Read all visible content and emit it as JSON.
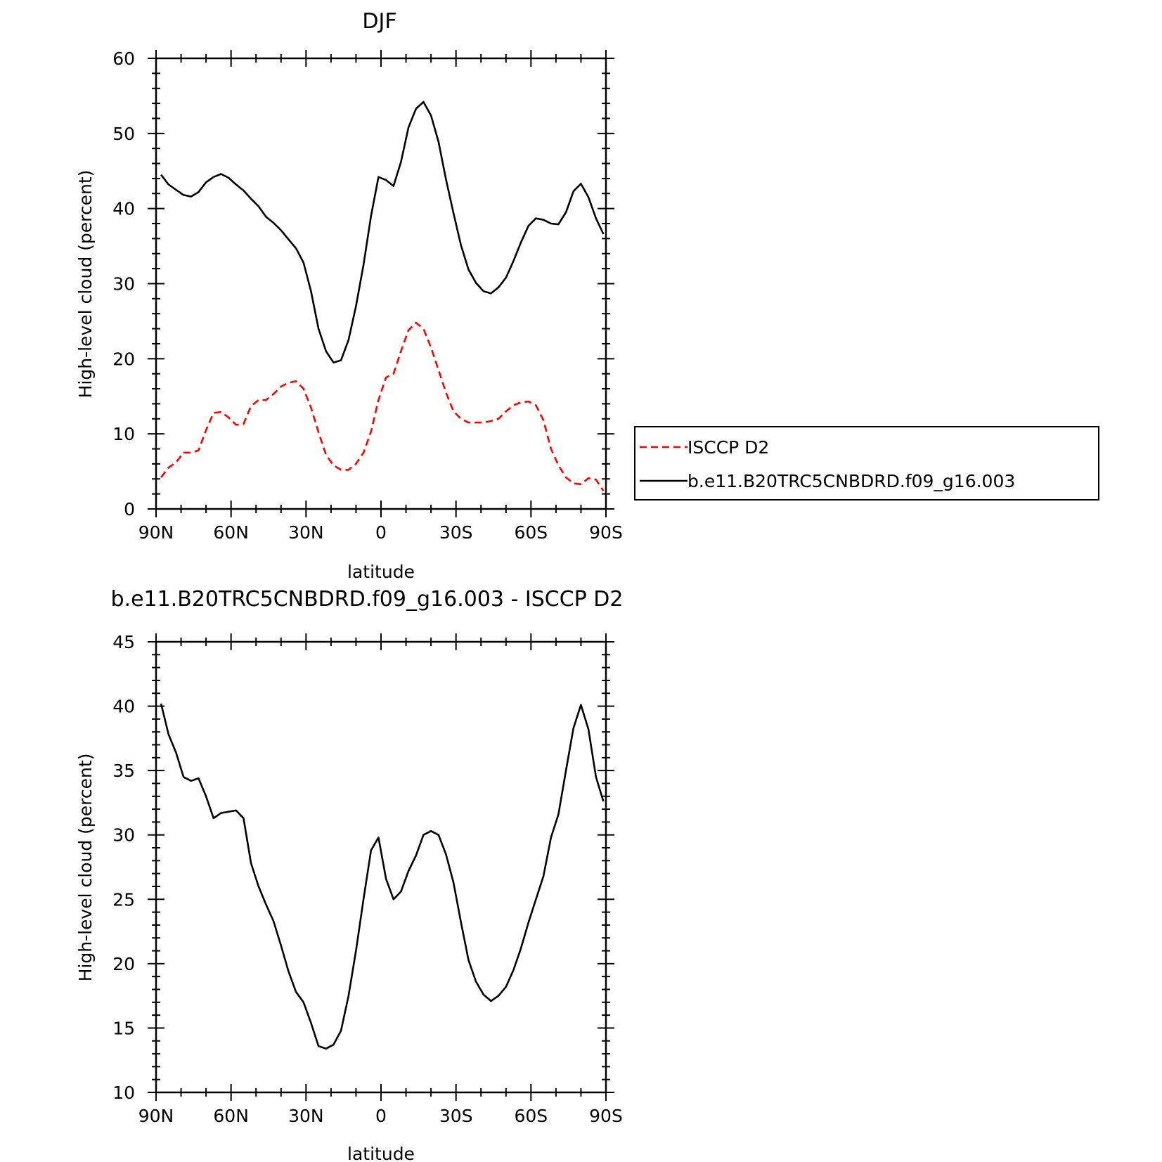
{
  "chart_data": [
    {
      "type": "line",
      "title": "DJF",
      "xlabel": "latitude",
      "ylabel": "High-level cloud (percent)",
      "xlim": [
        -90,
        90
      ],
      "ylim": [
        0,
        60
      ],
      "x_ticks": [
        -90,
        -60,
        -30,
        0,
        30,
        60,
        90
      ],
      "x_tick_labels": [
        "90N",
        "60N",
        "30N",
        "0",
        "30S",
        "60S",
        "90S"
      ],
      "y_ticks": [
        0,
        10,
        20,
        30,
        40,
        50,
        60
      ],
      "y_tick_labels": [
        "0",
        "10",
        "20",
        "30",
        "40",
        "50",
        "60"
      ],
      "grid": false,
      "legend": {
        "placement": "right",
        "entries": [
          "ISCCP D2",
          "b.e11.B20TRC5CNBDRD.f09_g16.003"
        ]
      },
      "x": [
        -88,
        -85,
        -82,
        -79,
        -76,
        -73,
        -70,
        -67,
        -64,
        -61,
        -58,
        -55,
        -52,
        -49,
        -46,
        -43,
        -40,
        -37,
        -34,
        -31,
        -28,
        -25,
        -22,
        -19,
        -16,
        -13,
        -10,
        -7,
        -4,
        -1,
        2,
        5,
        8,
        11,
        14,
        17,
        20,
        23,
        26,
        29,
        32,
        35,
        38,
        41,
        44,
        47,
        50,
        53,
        56,
        59,
        62,
        65,
        68,
        71,
        74,
        77,
        80,
        83,
        86,
        89
      ],
      "series": [
        {
          "name": "ISCCP D2",
          "color": "#ff0000",
          "dash": "dashed",
          "values": [
            4.2,
            5.5,
            6.2,
            7.5,
            7.5,
            7.8,
            10.5,
            12.8,
            12.9,
            12.2,
            11.2,
            11.3,
            13.7,
            14.5,
            14.5,
            15.3,
            16.3,
            16.8,
            17.0,
            16.0,
            13.5,
            10.2,
            7.2,
            5.8,
            5.2,
            5.2,
            6.0,
            7.5,
            10.3,
            14.5,
            17.5,
            18.0,
            21.0,
            23.8,
            24.8,
            24.0,
            21.5,
            18.5,
            15.5,
            13.0,
            12.0,
            11.5,
            11.5,
            11.5,
            11.7,
            12.0,
            13.0,
            13.8,
            14.2,
            14.3,
            13.8,
            11.8,
            8.0,
            5.8,
            4.2,
            3.4,
            3.3,
            4.1,
            3.9,
            2.4
          ]
        },
        {
          "name": "b.e11.B20TRC5CNBDRD.f09_g16.003",
          "color": "#000000",
          "dash": "solid",
          "values": [
            44.5,
            43.2,
            42.5,
            41.8,
            41.6,
            42.2,
            43.5,
            44.2,
            44.6,
            44.1,
            43.2,
            42.4,
            41.3,
            40.3,
            38.9,
            38.1,
            37.1,
            35.9,
            34.7,
            32.8,
            29.0,
            24.0,
            21.0,
            19.5,
            19.8,
            22.5,
            27.0,
            32.5,
            39.0,
            44.2,
            43.8,
            43.0,
            46.2,
            50.8,
            53.3,
            54.2,
            52.4,
            48.9,
            43.9,
            39.4,
            35.1,
            31.9,
            30.1,
            29.0,
            28.7,
            29.5,
            30.8,
            33.0,
            35.5,
            37.7,
            38.7,
            38.5,
            38.0,
            37.9,
            39.5,
            42.3,
            43.3,
            41.5,
            38.7,
            36.6
          ]
        }
      ]
    },
    {
      "type": "line",
      "title": "b.e11.B20TRC5CNBDRD.f09_g16.003 - ISCCP D2",
      "xlabel": "latitude",
      "ylabel": "High-level cloud (percent)",
      "xlim": [
        -90,
        90
      ],
      "ylim": [
        10,
        45
      ],
      "x_ticks": [
        -90,
        -60,
        -30,
        0,
        30,
        60,
        90
      ],
      "x_tick_labels": [
        "90N",
        "60N",
        "30N",
        "0",
        "30S",
        "60S",
        "90S"
      ],
      "y_ticks": [
        10,
        15,
        20,
        25,
        30,
        35,
        40,
        45
      ],
      "y_tick_labels": [
        "10",
        "15",
        "20",
        "25",
        "30",
        "35",
        "40",
        "45"
      ],
      "grid": false,
      "x": [
        -88,
        -85,
        -82,
        -79,
        -76,
        -73,
        -70,
        -67,
        -64,
        -61,
        -58,
        -55,
        -52,
        -49,
        -46,
        -43,
        -40,
        -37,
        -34,
        -31,
        -28,
        -25,
        -22,
        -19,
        -16,
        -13,
        -10,
        -7,
        -4,
        -1,
        2,
        5,
        8,
        11,
        14,
        17,
        20,
        23,
        26,
        29,
        32,
        35,
        38,
        41,
        44,
        47,
        50,
        53,
        56,
        59,
        62,
        65,
        68,
        71,
        74,
        77,
        80,
        83,
        86,
        89
      ],
      "series": [
        {
          "color": "#000000",
          "dash": "solid",
          "values": [
            40.2,
            37.8,
            36.4,
            34.5,
            34.2,
            34.4,
            33.0,
            31.3,
            31.7,
            31.8,
            31.9,
            31.3,
            27.8,
            26.0,
            24.6,
            23.3,
            21.4,
            19.4,
            17.8,
            17.0,
            15.4,
            13.6,
            13.4,
            13.7,
            14.8,
            17.5,
            21.0,
            25.0,
            28.8,
            29.8,
            26.6,
            25.0,
            25.6,
            27.2,
            28.4,
            30.0,
            30.3,
            30.0,
            28.5,
            26.3,
            23.2,
            20.3,
            18.6,
            17.6,
            17.1,
            17.5,
            18.2,
            19.5,
            21.2,
            23.2,
            25.0,
            26.8,
            29.8,
            31.6,
            35.0,
            38.3,
            40.1,
            38.2,
            34.5,
            32.6
          ]
        }
      ]
    }
  ]
}
